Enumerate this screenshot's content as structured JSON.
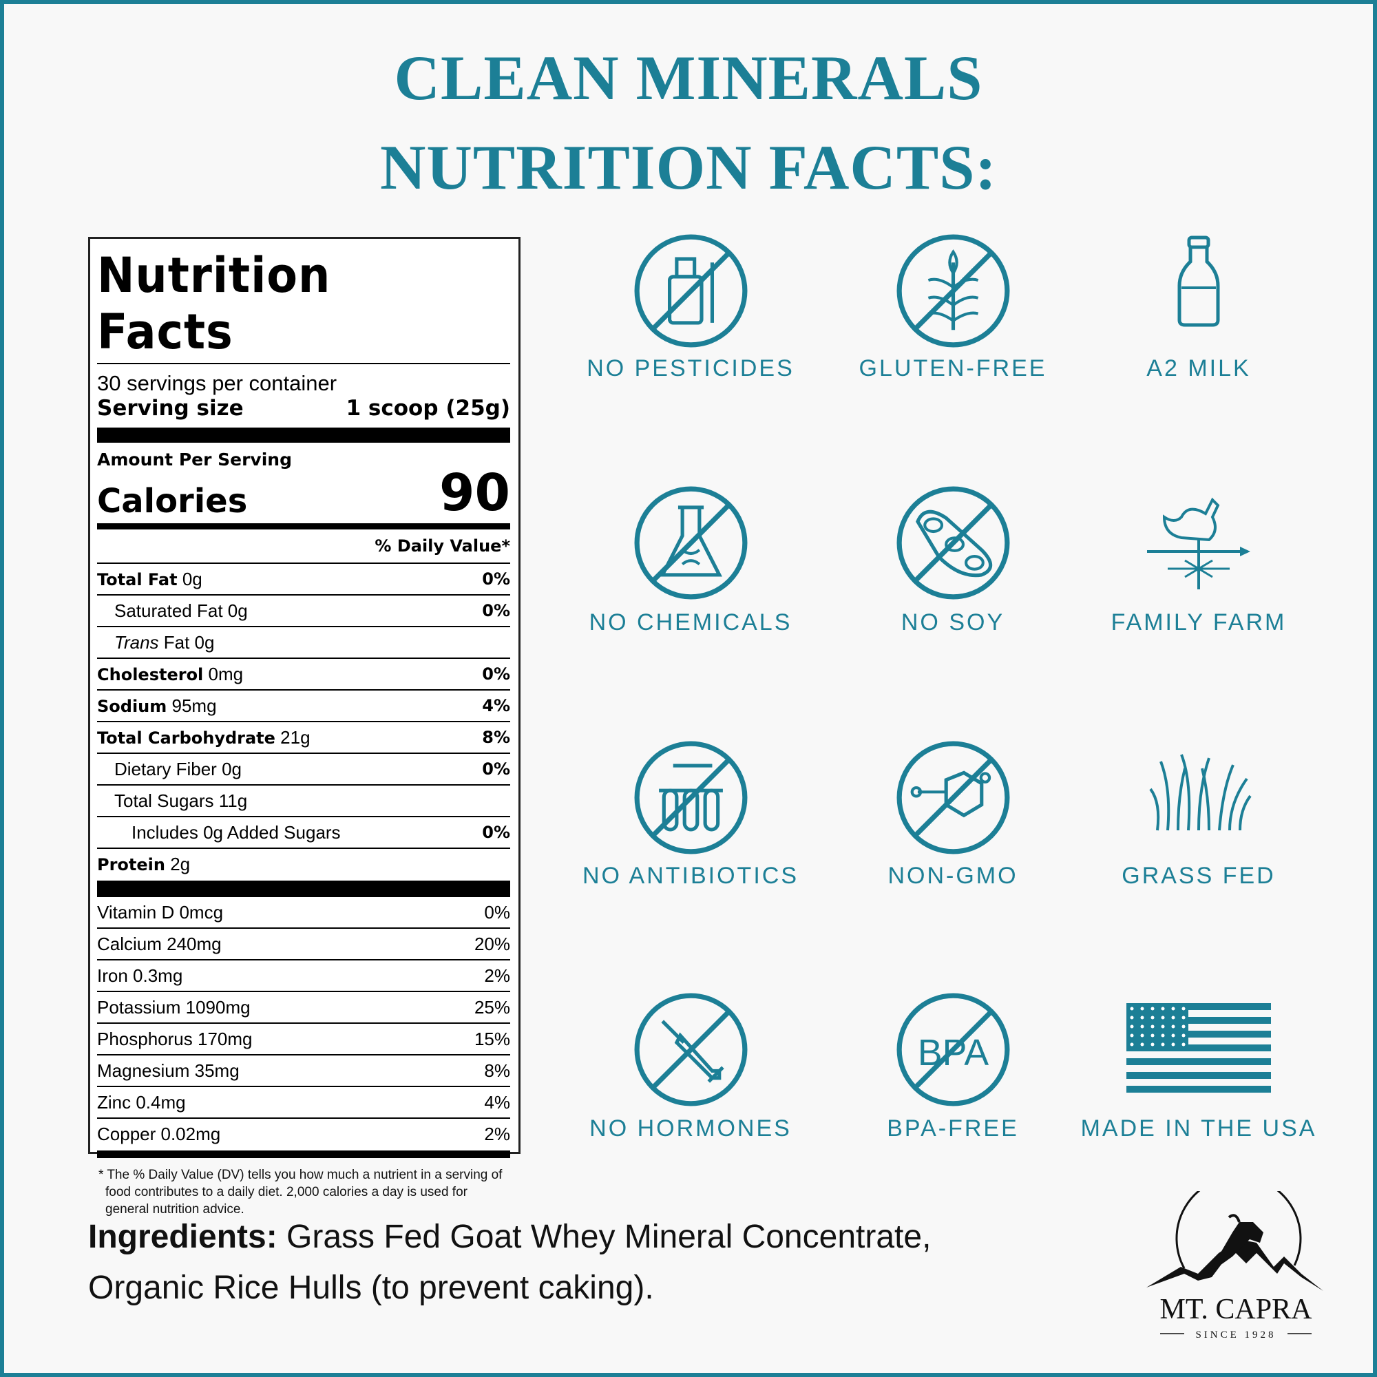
{
  "header": {
    "line1": "CLEAN MINERALS",
    "line2": "NUTRITION FACTS:"
  },
  "label": {
    "title": "Nutrition Facts",
    "servings": "30 servings per container",
    "serving_size_label": "Serving size",
    "serving_size_value": "1 scoop (25g)",
    "amount_per_serving": "Amount Per Serving",
    "calories_label": "Calories",
    "calories_value": "90",
    "dv_header": "% Daily Value*",
    "nutrients": [
      {
        "name": "Total Fat",
        "amount": "0g",
        "dv": "0%",
        "bold": true,
        "indent": 0
      },
      {
        "name": "Saturated Fat",
        "amount": "0g",
        "dv": "0%",
        "bold": false,
        "indent": 1
      },
      {
        "name": "Trans",
        "amount": "Fat 0g",
        "dv": "",
        "bold": false,
        "indent": 1,
        "italic": true
      },
      {
        "name": "Cholesterol",
        "amount": "0mg",
        "dv": "0%",
        "bold": true,
        "indent": 0
      },
      {
        "name": "Sodium",
        "amount": "95mg",
        "dv": "4%",
        "bold": true,
        "indent": 0
      },
      {
        "name": "Total Carbohydrate",
        "amount": "21g",
        "dv": "8%",
        "bold": true,
        "indent": 0
      },
      {
        "name": "Dietary Fiber",
        "amount": "0g",
        "dv": "0%",
        "bold": false,
        "indent": 1
      },
      {
        "name": "Total Sugars",
        "amount": "11g",
        "dv": "",
        "bold": false,
        "indent": 1
      },
      {
        "name": "Includes 0g Added Sugars",
        "amount": "",
        "dv": "0%",
        "bold": false,
        "indent": 2
      },
      {
        "name": "Protein",
        "amount": "2g",
        "dv": "",
        "bold": true,
        "indent": 0
      }
    ],
    "vitamins": [
      {
        "name": "Vitamin D 0mcg",
        "dv": "0%"
      },
      {
        "name": "Calcium 240mg",
        "dv": "20%"
      },
      {
        "name": "Iron 0.3mg",
        "dv": "2%"
      },
      {
        "name": "Potassium 1090mg",
        "dv": "25%"
      },
      {
        "name": "Phosphorus 170mg",
        "dv": "15%"
      },
      {
        "name": "Magnesium 35mg",
        "dv": "8%"
      },
      {
        "name": "Zinc 0.4mg",
        "dv": "4%"
      },
      {
        "name": "Copper 0.02mg",
        "dv": "2%"
      }
    ],
    "footnote": "* The % Daily Value (DV) tells you how much a nutrient in a serving of food contributes to a daily diet. 2,000 calories a day is used for general nutrition advice."
  },
  "badges": [
    {
      "label": "NO PESTICIDES",
      "icon": "no-pesticides-icon"
    },
    {
      "label": "GLUTEN-FREE",
      "icon": "no-gluten-icon"
    },
    {
      "label": "A2 MILK",
      "icon": "milk-bottle-icon"
    },
    {
      "label": "NO CHEMICALS",
      "icon": "no-chemicals-icon"
    },
    {
      "label": "NO SOY",
      "icon": "no-soy-icon"
    },
    {
      "label": "FAMILY FARM",
      "icon": "weathervane-rooster-icon"
    },
    {
      "label": "NO ANTIBIOTICS",
      "icon": "no-antibiotics-icon"
    },
    {
      "label": "NON-GMO",
      "icon": "non-gmo-icon"
    },
    {
      "label": "GRASS FED",
      "icon": "grass-icon"
    },
    {
      "label": "NO HORMONES",
      "icon": "no-hormones-icon"
    },
    {
      "label": "BPA-FREE",
      "icon": "bpa-free-icon",
      "icon_text": "BPA"
    },
    {
      "label": "MADE IN THE USA",
      "icon": "us-flag-icon"
    }
  ],
  "ingredients": {
    "label": "Ingredients:",
    "line1": " Grass Fed Goat Whey Mineral Concentrate,",
    "line2": "Organic Rice Hulls (to prevent caking)."
  },
  "logo": {
    "name": "MT. CAPRA",
    "since": "SINCE 1928"
  },
  "colors": {
    "accent": "#1c7f96",
    "border": "#1c7f96",
    "background": "#f8f8f8"
  }
}
